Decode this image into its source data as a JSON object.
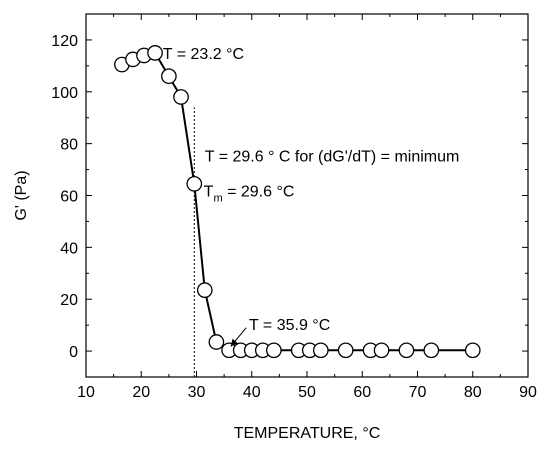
{
  "chart_data": {
    "type": "line",
    "xlabel": "TEMPERATURE, °C",
    "ylabel": "G' (Pa)",
    "xlim": [
      10,
      90
    ],
    "ylim": [
      -10,
      130
    ],
    "x_ticks": [
      10,
      20,
      30,
      40,
      50,
      60,
      70,
      80,
      90
    ],
    "y_ticks": [
      0,
      20,
      40,
      60,
      80,
      100,
      120
    ],
    "grid": false,
    "series": [
      {
        "marker": "open-circle",
        "color": "#000000",
        "x": [
          16.5,
          18.5,
          20.5,
          22.5,
          25.0,
          27.2,
          29.6,
          31.5,
          33.6,
          35.9,
          38.0,
          40.0,
          42.0,
          44.0,
          48.5,
          50.5,
          52.5,
          57.0,
          61.5,
          63.5,
          68.0,
          72.5,
          80.0
        ],
        "y": [
          110.5,
          112.5,
          114,
          115,
          106,
          98,
          64.5,
          23.5,
          3.5,
          0.3,
          0.3,
          0.3,
          0.3,
          0.3,
          0.3,
          0.3,
          0.3,
          0.3,
          0.3,
          0.3,
          0.3,
          0.3,
          0.3
        ]
      }
    ],
    "reference_line": {
      "orientation": "vertical",
      "x": 29.6,
      "y_from": -10,
      "y_to": 94,
      "style": "dotted"
    },
    "annotations": [
      {
        "key": "t-max",
        "text": "T = 23.2 °C",
        "x": 23.9,
        "y": 115
      },
      {
        "key": "t-min-slope",
        "text": "T = 29.6 ° C for (dG'/dT) = minimum",
        "x": 31.5,
        "y": 75.5
      },
      {
        "key": "tm",
        "text_main": "T",
        "text_sub": "m",
        "text_rest": " = 29.6 °C",
        "x": 31.3,
        "y": 62
      },
      {
        "key": "t-end",
        "text": "T = 35.9 °C",
        "x": 39.5,
        "y": 10.5
      }
    ],
    "arrow": {
      "from": [
        39.0,
        9.0
      ],
      "to": [
        36.2,
        1.8
      ]
    }
  }
}
